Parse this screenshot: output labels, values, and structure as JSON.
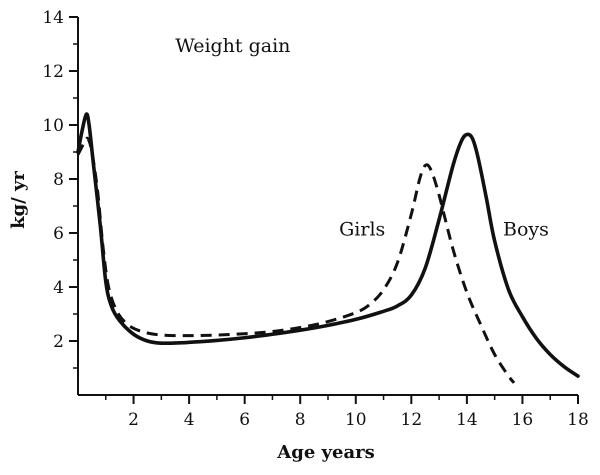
{
  "chart_data": {
    "type": "line",
    "title": "Weight gain",
    "xlabel": "Age years",
    "ylabel": "kg/ yr",
    "xlim": [
      0,
      18
    ],
    "ylim": [
      0,
      14
    ],
    "x_ticks": [
      2,
      4,
      6,
      8,
      10,
      12,
      14,
      16,
      18
    ],
    "x_tick_labels": [
      "2",
      "4",
      "6",
      "8",
      "10",
      "12",
      "14",
      "16",
      "18"
    ],
    "y_ticks": [
      2,
      4,
      6,
      8,
      10,
      12,
      14
    ],
    "y_tick_labels": [
      "2",
      "4",
      "6",
      "8",
      "10",
      "12",
      "14"
    ],
    "series": [
      {
        "name": "Boys",
        "style": "solid",
        "x": [
          0,
          0.15,
          0.3,
          0.4,
          0.55,
          0.8,
          1.0,
          1.2,
          1.5,
          2.0,
          2.5,
          3.0,
          4.0,
          5.0,
          6.0,
          7.0,
          8.0,
          9.0,
          10.0,
          11.0,
          11.5,
          12.0,
          12.5,
          13.0,
          13.5,
          13.8,
          14.0,
          14.2,
          14.4,
          14.7,
          15.0,
          15.5,
          16.0,
          16.5,
          17.0,
          17.5,
          18.0
        ],
        "values": [
          9.0,
          9.8,
          10.4,
          10.0,
          8.6,
          6.3,
          4.2,
          3.3,
          2.75,
          2.25,
          2.0,
          1.92,
          1.95,
          2.02,
          2.12,
          2.25,
          2.4,
          2.58,
          2.8,
          3.1,
          3.3,
          3.7,
          4.7,
          6.5,
          8.5,
          9.4,
          9.65,
          9.5,
          8.8,
          7.3,
          5.7,
          3.9,
          2.9,
          2.1,
          1.5,
          1.05,
          0.7
        ]
      },
      {
        "name": "Girls",
        "style": "dashed",
        "x": [
          0,
          0.2,
          0.35,
          0.5,
          0.7,
          0.9,
          1.1,
          1.4,
          1.8,
          2.3,
          3.0,
          4.0,
          5.0,
          6.0,
          7.0,
          8.0,
          9.0,
          10.0,
          10.5,
          11.0,
          11.5,
          12.0,
          12.3,
          12.5,
          12.7,
          13.0,
          13.5,
          14.0,
          14.5,
          15.0,
          15.5,
          15.7
        ],
        "values": [
          8.9,
          9.3,
          9.5,
          9.0,
          7.6,
          5.5,
          4.0,
          3.1,
          2.6,
          2.35,
          2.22,
          2.2,
          2.22,
          2.27,
          2.35,
          2.5,
          2.72,
          3.05,
          3.35,
          3.9,
          4.9,
          6.7,
          8.0,
          8.5,
          8.35,
          7.4,
          5.4,
          3.8,
          2.6,
          1.5,
          0.7,
          0.45
        ]
      }
    ],
    "annotations": [
      {
        "text": "Weight gain",
        "x": 3.5,
        "y": 12.7
      },
      {
        "text": "Girls",
        "x": 9.4,
        "y": 5.9
      },
      {
        "text": "Boys",
        "x": 15.3,
        "y": 5.9
      }
    ]
  }
}
